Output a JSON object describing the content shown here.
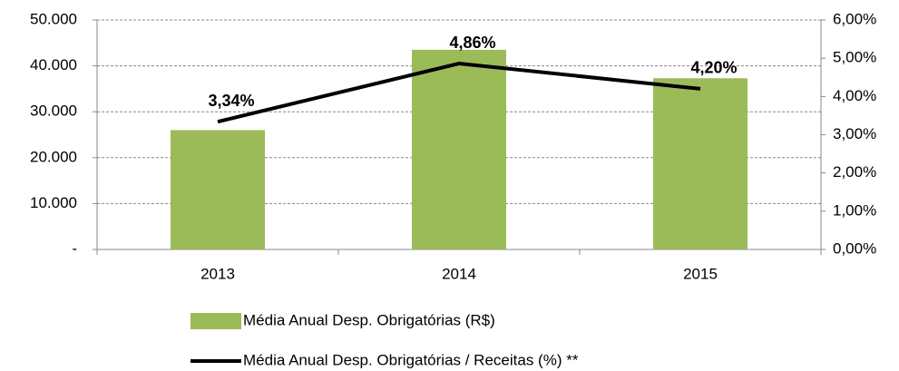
{
  "chart_data": {
    "type": "bar",
    "categories": [
      "2013",
      "2014",
      "2015"
    ],
    "series": [
      {
        "name": "Média Anual Desp. Obrigatórias (R$)",
        "type": "bar",
        "color": "#9bbb59",
        "values": [
          26000,
          43500,
          37300
        ]
      },
      {
        "name": "Média Anual Desp. Obrigatórias / Receitas (%) **",
        "type": "line",
        "axis": "y2",
        "color": "#000000",
        "values": [
          3.34,
          4.86,
          4.2
        ],
        "value_labels": [
          "3,34%",
          "4,86%",
          "4,20%"
        ]
      }
    ],
    "ylim": [
      0,
      50000
    ],
    "yticks": [
      {
        "value": 0,
        "label": "-"
      },
      {
        "value": 10000,
        "label": "10.000"
      },
      {
        "value": 20000,
        "label": "20.000"
      },
      {
        "value": 30000,
        "label": "30.000"
      },
      {
        "value": 40000,
        "label": "40.000"
      },
      {
        "value": 50000,
        "label": "50.000"
      }
    ],
    "y2lim": [
      0,
      6
    ],
    "y2ticks": [
      {
        "value": 0,
        "label": "0,00%"
      },
      {
        "value": 1,
        "label": "1,00%"
      },
      {
        "value": 2,
        "label": "2,00%"
      },
      {
        "value": 3,
        "label": "3,00%"
      },
      {
        "value": 4,
        "label": "4,00%"
      },
      {
        "value": 5,
        "label": "5,00%"
      },
      {
        "value": 6,
        "label": "6,00%"
      }
    ],
    "grid": true
  }
}
